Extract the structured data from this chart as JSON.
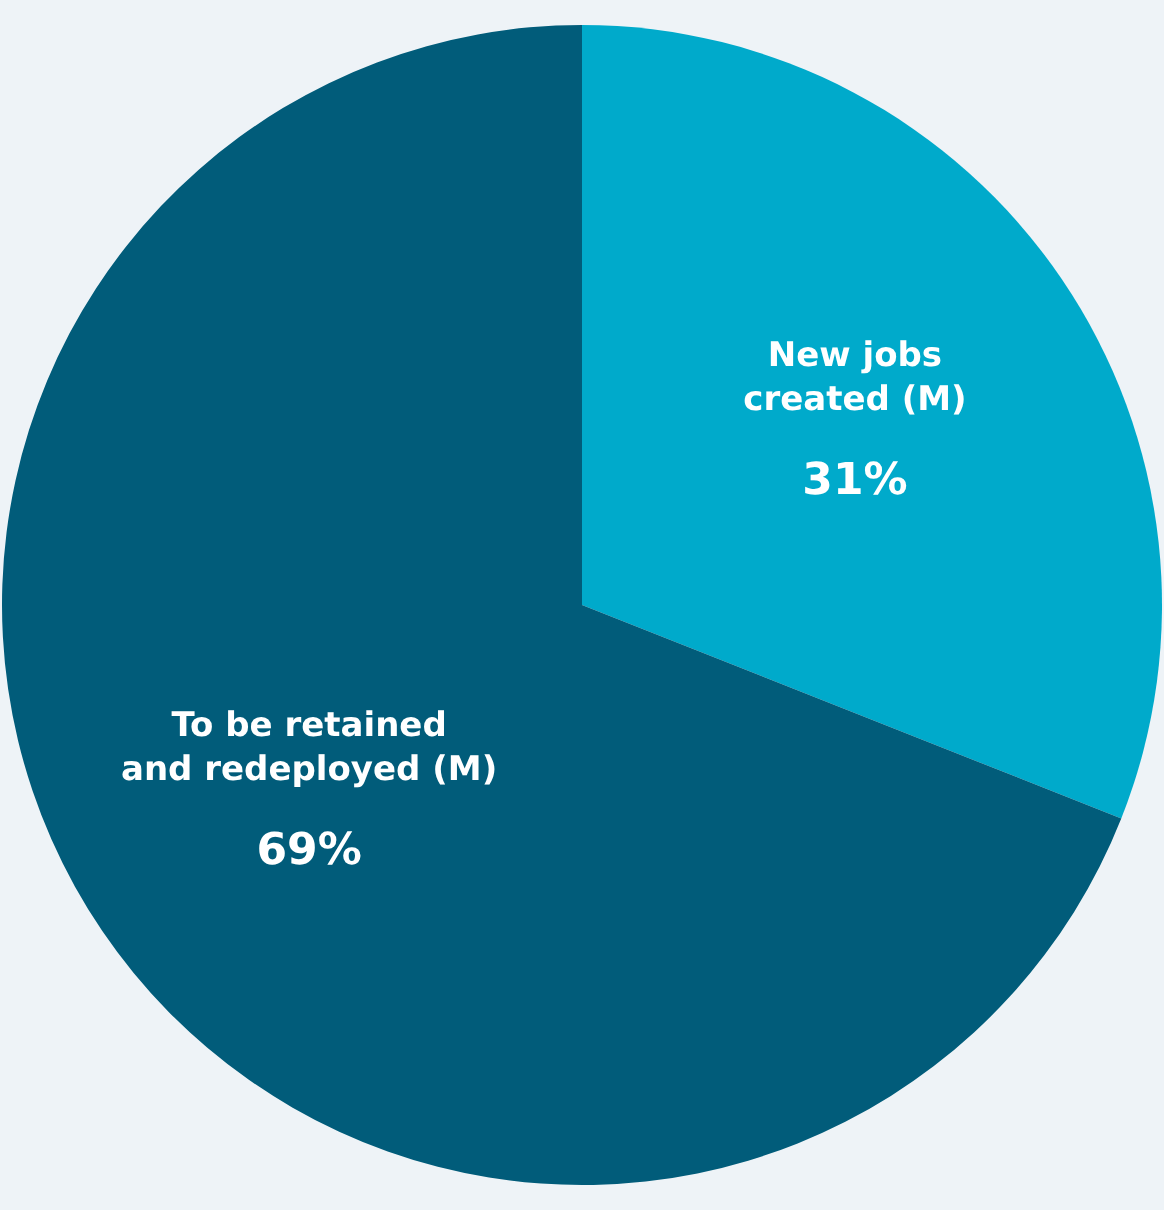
{
  "chart_data": {
    "type": "pie",
    "categories": [
      "New jobs created (M)",
      "To be retained and redeployed (M)"
    ],
    "values": [
      31,
      69
    ],
    "colors": [
      "#00aacb",
      "#015c7a"
    ],
    "value_labels": [
      "31%",
      "69%"
    ]
  }
}
